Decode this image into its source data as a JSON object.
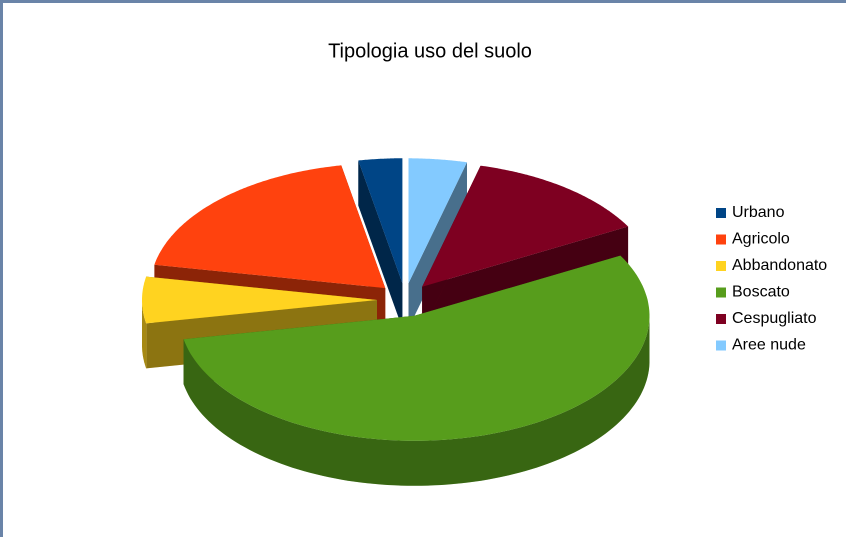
{
  "chart_data": {
    "type": "pie",
    "title": "Tipologia uso del suolo",
    "categories": [
      "Urbano",
      "Agricolo",
      "Abbandonato",
      "Boscato",
      "Cespugliato",
      "Aree nude"
    ],
    "values": [
      3,
      19,
      6,
      55,
      13,
      4
    ],
    "colors": [
      "#004586",
      "#ff420e",
      "#ffd320",
      "#579d1c",
      "#7e0021",
      "#83caff"
    ],
    "legend": "right"
  }
}
